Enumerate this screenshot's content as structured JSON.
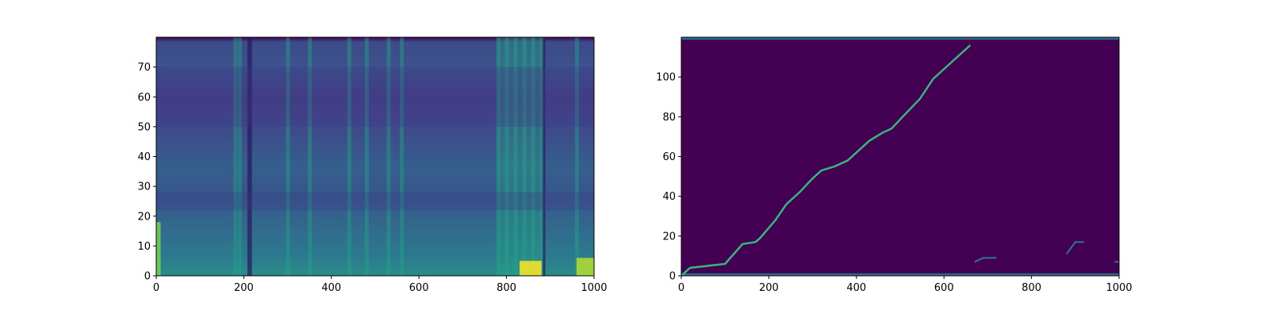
{
  "chart_data": [
    {
      "type": "heatmap",
      "title": "",
      "xlabel": "",
      "ylabel": "",
      "colormap": "viridis",
      "xlim": [
        0,
        1000
      ],
      "ylim": [
        0,
        80
      ],
      "xticks": [
        0,
        200,
        400,
        600,
        800,
        1000
      ],
      "yticks": [
        0,
        10,
        20,
        30,
        40,
        50,
        60,
        70
      ],
      "xtick_labels": [
        "0",
        "200",
        "400",
        "600",
        "800",
        "1000"
      ],
      "ytick_labels": [
        "0",
        "10",
        "20",
        "30",
        "40",
        "50",
        "60",
        "70"
      ],
      "description_values": {
        "bright_regions": [
          {
            "x_range": [
              830,
              880
            ],
            "y_range": [
              0,
              5
            ],
            "level": 1.0
          },
          {
            "x_range": [
              960,
              1000
            ],
            "y_range": [
              0,
              6
            ],
            "level": 0.9
          },
          {
            "x_range": [
              0,
              10
            ],
            "y_range": [
              0,
              18
            ],
            "level": 0.8
          }
        ],
        "bright_columns": [
          180,
          190,
          300,
          350,
          440,
          480,
          530,
          560,
          780,
          800,
          820,
          840,
          860,
          880,
          960
        ],
        "dark_columns": [
          210,
          215,
          885
        ],
        "dark_bands_y": [
          [
            50,
            70
          ],
          [
            22,
            28
          ]
        ]
      }
    },
    {
      "type": "heatmap",
      "title": "",
      "xlabel": "",
      "ylabel": "",
      "colormap": "viridis",
      "xlim": [
        0,
        1000
      ],
      "ylim": [
        0,
        120
      ],
      "xticks": [
        0,
        200,
        400,
        600,
        800,
        1000
      ],
      "yticks": [
        0,
        20,
        40,
        60,
        80,
        100
      ],
      "xtick_labels": [
        "0",
        "200",
        "400",
        "600",
        "800",
        "1000"
      ],
      "ytick_labels": [
        "0",
        "20",
        "40",
        "60",
        "80",
        "100"
      ],
      "alignment_path": [
        [
          0,
          0
        ],
        [
          20,
          4
        ],
        [
          100,
          6
        ],
        [
          140,
          16
        ],
        [
          170,
          17
        ],
        [
          180,
          19
        ],
        [
          215,
          28
        ],
        [
          240,
          36
        ],
        [
          270,
          42
        ],
        [
          300,
          49
        ],
        [
          320,
          53
        ],
        [
          350,
          55
        ],
        [
          380,
          58
        ],
        [
          400,
          62
        ],
        [
          430,
          68
        ],
        [
          460,
          72
        ],
        [
          480,
          74
        ],
        [
          510,
          81
        ],
        [
          545,
          89
        ],
        [
          575,
          99
        ],
        [
          600,
          104
        ],
        [
          630,
          110
        ],
        [
          660,
          116
        ]
      ],
      "side_paths": [
        [
          [
            880,
            11
          ],
          [
            900,
            17
          ],
          [
            920,
            17
          ]
        ],
        [
          [
            670,
            7
          ],
          [
            690,
            9
          ],
          [
            720,
            9
          ]
        ],
        [
          [
            990,
            7
          ],
          [
            1000,
            7
          ]
        ]
      ],
      "bright_rows": [
        0,
        119
      ]
    }
  ]
}
